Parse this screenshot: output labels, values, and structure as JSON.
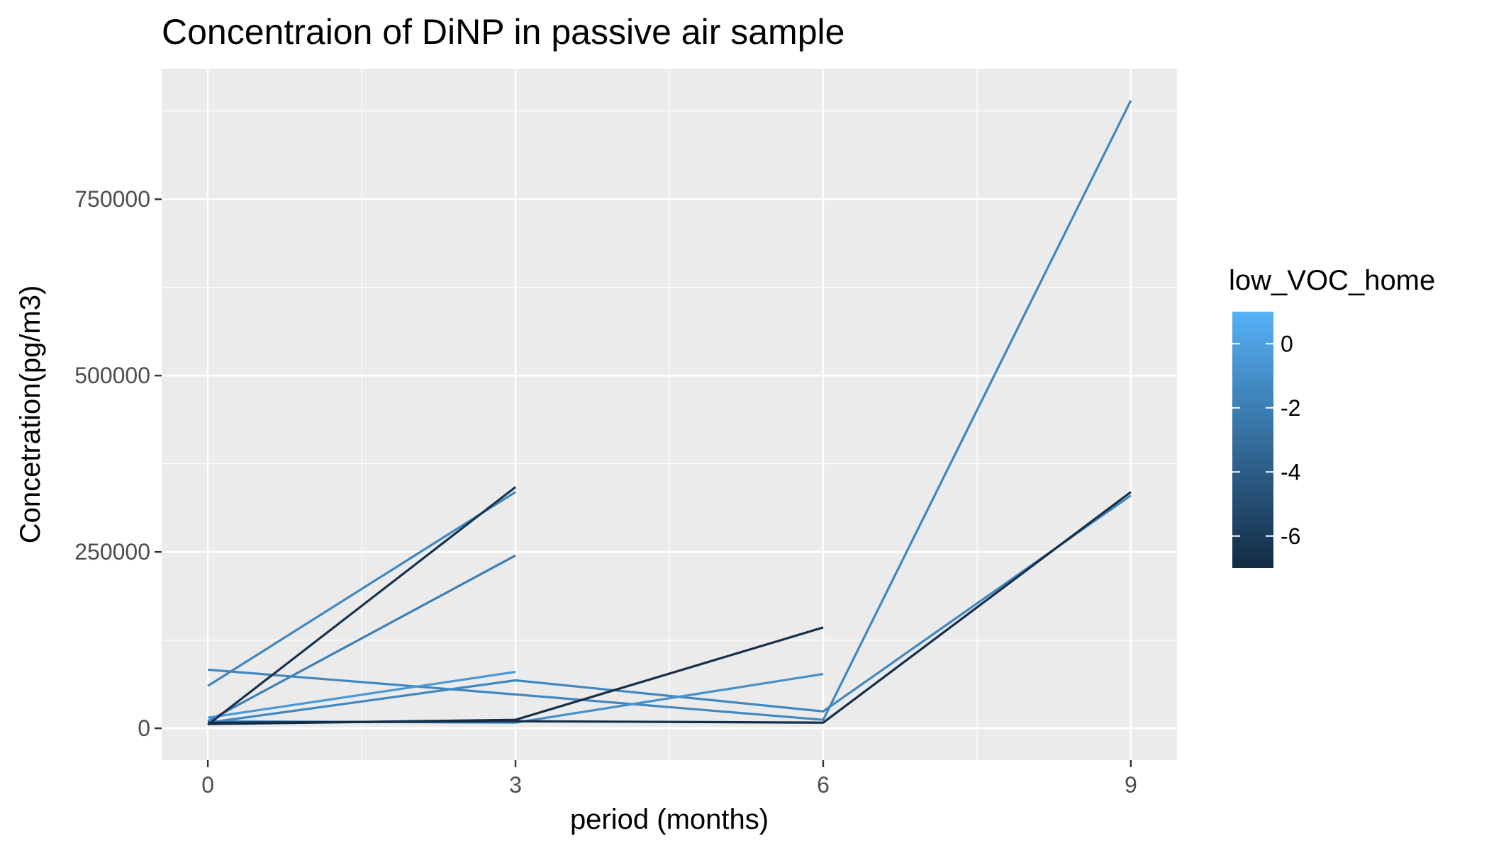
{
  "chart_data": {
    "type": "line",
    "title": "Concentraion of DiNP in passive air sample",
    "xlabel": "period (months)",
    "ylabel": "Concetration(pg/m3)",
    "xlim": [
      -0.45,
      9.45
    ],
    "ylim": [
      -45000,
      935000
    ],
    "x_ticks": [
      0,
      3,
      6,
      9
    ],
    "y_ticks": [
      0,
      250000,
      500000,
      750000
    ],
    "grid": true,
    "legend": {
      "title": "low_VOC_home",
      "placement": "right",
      "type": "colorbar",
      "range": [
        -7,
        1
      ],
      "ticks": [
        0,
        -2,
        -4,
        -6
      ],
      "low_color": "#132b43",
      "high_color": "#56b1f7"
    },
    "colors": {
      "panel_background": "#ebebeb",
      "grid": "#ffffff",
      "tick_label": "#4d4d4d"
    },
    "series": [
      {
        "color_value": -1.5,
        "points": [
          [
            0,
            60000
          ],
          [
            3,
            335000
          ]
        ]
      },
      {
        "color_value": -2.0,
        "points": [
          [
            0,
            10000
          ],
          [
            3,
            245000
          ]
        ]
      },
      {
        "color_value": -1.5,
        "points": [
          [
            0,
            83000
          ],
          [
            3,
            48000
          ],
          [
            6,
            12000
          ],
          [
            9,
            890000
          ]
        ]
      },
      {
        "color_value": -0.5,
        "points": [
          [
            0,
            15000
          ],
          [
            3,
            80000
          ]
        ]
      },
      {
        "color_value": -1.5,
        "points": [
          [
            0,
            8000
          ],
          [
            3,
            68000
          ],
          [
            6,
            24000
          ],
          [
            9,
            330000
          ]
        ]
      },
      {
        "color_value": -1.0,
        "points": [
          [
            0,
            10000
          ],
          [
            3,
            8000
          ],
          [
            6,
            77000
          ]
        ]
      },
      {
        "color_value": -6.8,
        "points": [
          [
            0,
            6000
          ],
          [
            3,
            12000
          ],
          [
            6,
            143000
          ]
        ]
      },
      {
        "color_value": -6.8,
        "points": [
          [
            0,
            8000
          ],
          [
            3,
            10000
          ],
          [
            6,
            8000
          ],
          [
            9,
            335000
          ]
        ]
      },
      {
        "color_value": -6.5,
        "points": [
          [
            0,
            5000
          ],
          [
            3,
            342000
          ]
        ]
      }
    ]
  }
}
